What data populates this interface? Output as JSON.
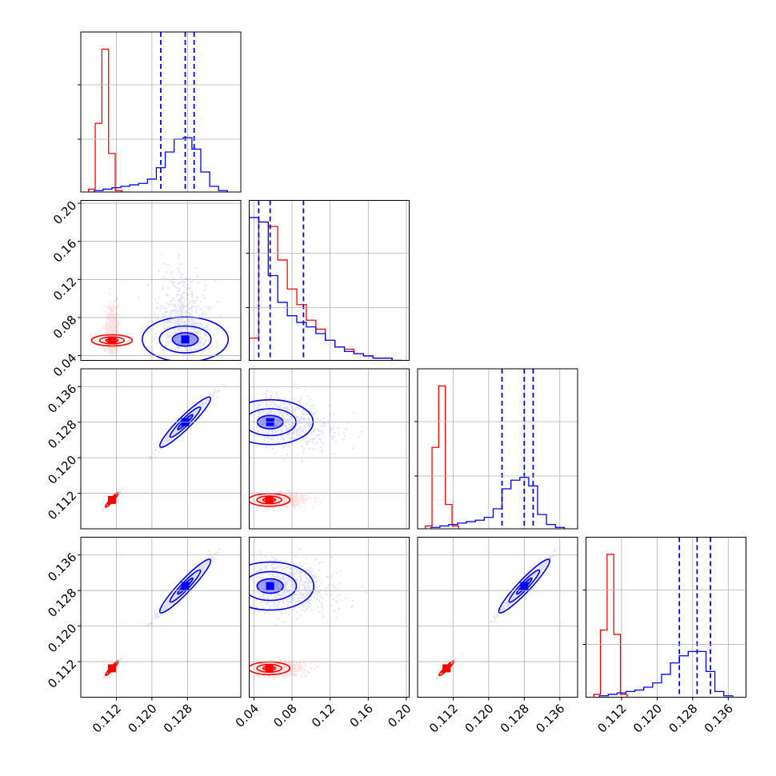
{
  "chart_data": {
    "type": "corner",
    "title": "",
    "grid": true,
    "dimensions": [
      {
        "index": 0,
        "range": [
          0.104,
          0.14
        ],
        "ticks": [
          "0.112",
          "0.120",
          "0.128"
        ]
      },
      {
        "index": 1,
        "range": [
          0.035,
          0.203
        ],
        "ticks": [
          "0.04",
          "0.08",
          "0.12",
          "0.16",
          "0.20"
        ]
      },
      {
        "index": 2,
        "range": [
          0.104,
          0.14
        ],
        "ticks": [
          "0.112",
          "0.120",
          "0.128",
          "0.136"
        ]
      },
      {
        "index": 3,
        "range": [
          0.104,
          0.14
        ],
        "ticks": [
          "0.112",
          "0.120",
          "0.128",
          "0.136"
        ]
      }
    ],
    "series": [
      {
        "color": "#ff0000",
        "medians": [
          0.111,
          0.056,
          0.1105,
          0.1105
        ],
        "sigmas": [
          0.0007,
          0.013,
          0.0008,
          0.0008
        ],
        "hist1d": [
          {
            "x": [
              0.1065,
              0.108,
              0.1095,
              0.111,
              0.1125
            ],
            "y": [
              0.02,
              0.48,
              1.0,
              0.27,
              0.01
            ]
          },
          {
            "x": [
              0.04,
              0.05,
              0.06,
              0.07,
              0.08,
              0.09,
              0.1,
              0.11,
              0.12,
              0.13,
              0.14,
              0.15,
              0.16,
              0.17,
              0.18,
              0.19
            ],
            "y": [
              0.1,
              0.62,
              0.6,
              0.45,
              0.32,
              0.25,
              0.18,
              0.14,
              0.09,
              0.06,
              0.05,
              0.03,
              0.02,
              0.01,
              0.01,
              0.0
            ]
          },
          {
            "x": [
              0.1065,
              0.108,
              0.1095,
              0.111,
              0.1125
            ],
            "y": [
              0.02,
              0.57,
              1.0,
              0.17,
              0.02
            ]
          },
          {
            "x": [
              0.1065,
              0.108,
              0.1095,
              0.111,
              0.1125
            ],
            "y": [
              0.02,
              0.47,
              1.0,
              0.44,
              0.02
            ]
          }
        ]
      },
      {
        "color": "#0000ff",
        "medians": [
          0.1275,
          0.057,
          0.128,
          0.129
        ],
        "quantiles": [
          [
            0.122,
            0.1275,
            0.1295
          ],
          [
            0.045,
            0.057,
            0.092
          ],
          [
            0.123,
            0.128,
            0.13
          ],
          [
            0.125,
            0.129,
            0.132
          ]
        ],
        "sigmas": [
          0.0028,
          0.025,
          0.0028,
          0.003
        ],
        "hist1d": [
          {
            "x": [
              0.108,
              0.11,
              0.112,
              0.114,
              0.116,
              0.118,
              0.12,
              0.122,
              0.124,
              0.126,
              0.128,
              0.13,
              0.132,
              0.134,
              0.136
            ],
            "y": [
              0.01,
              0.02,
              0.03,
              0.04,
              0.05,
              0.06,
              0.09,
              0.17,
              0.28,
              0.37,
              0.38,
              0.3,
              0.14,
              0.04,
              0.01
            ]
          },
          {
            "x": [
              0.04,
              0.05,
              0.06,
              0.07,
              0.08,
              0.09,
              0.1,
              0.11,
              0.12,
              0.13,
              0.14,
              0.15,
              0.16,
              0.17,
              0.18,
              0.19
            ],
            "y": [
              0.64,
              0.62,
              0.38,
              0.26,
              0.2,
              0.17,
              0.15,
              0.12,
              0.09,
              0.06,
              0.04,
              0.03,
              0.02,
              0.01,
              0.01,
              0.0
            ]
          },
          {
            "x": [
              0.108,
              0.11,
              0.112,
              0.114,
              0.116,
              0.118,
              0.12,
              0.122,
              0.124,
              0.126,
              0.128,
              0.13,
              0.132,
              0.134,
              0.136
            ],
            "y": [
              0.01,
              0.02,
              0.03,
              0.04,
              0.05,
              0.06,
              0.08,
              0.14,
              0.28,
              0.34,
              0.36,
              0.3,
              0.1,
              0.03,
              0.01
            ]
          },
          {
            "x": [
              0.108,
              0.11,
              0.112,
              0.114,
              0.116,
              0.118,
              0.12,
              0.122,
              0.124,
              0.126,
              0.128,
              0.13,
              0.132,
              0.134,
              0.136
            ],
            "y": [
              0.01,
              0.02,
              0.03,
              0.04,
              0.05,
              0.07,
              0.1,
              0.16,
              0.24,
              0.29,
              0.32,
              0.32,
              0.18,
              0.04,
              0.01
            ]
          }
        ]
      }
    ]
  }
}
